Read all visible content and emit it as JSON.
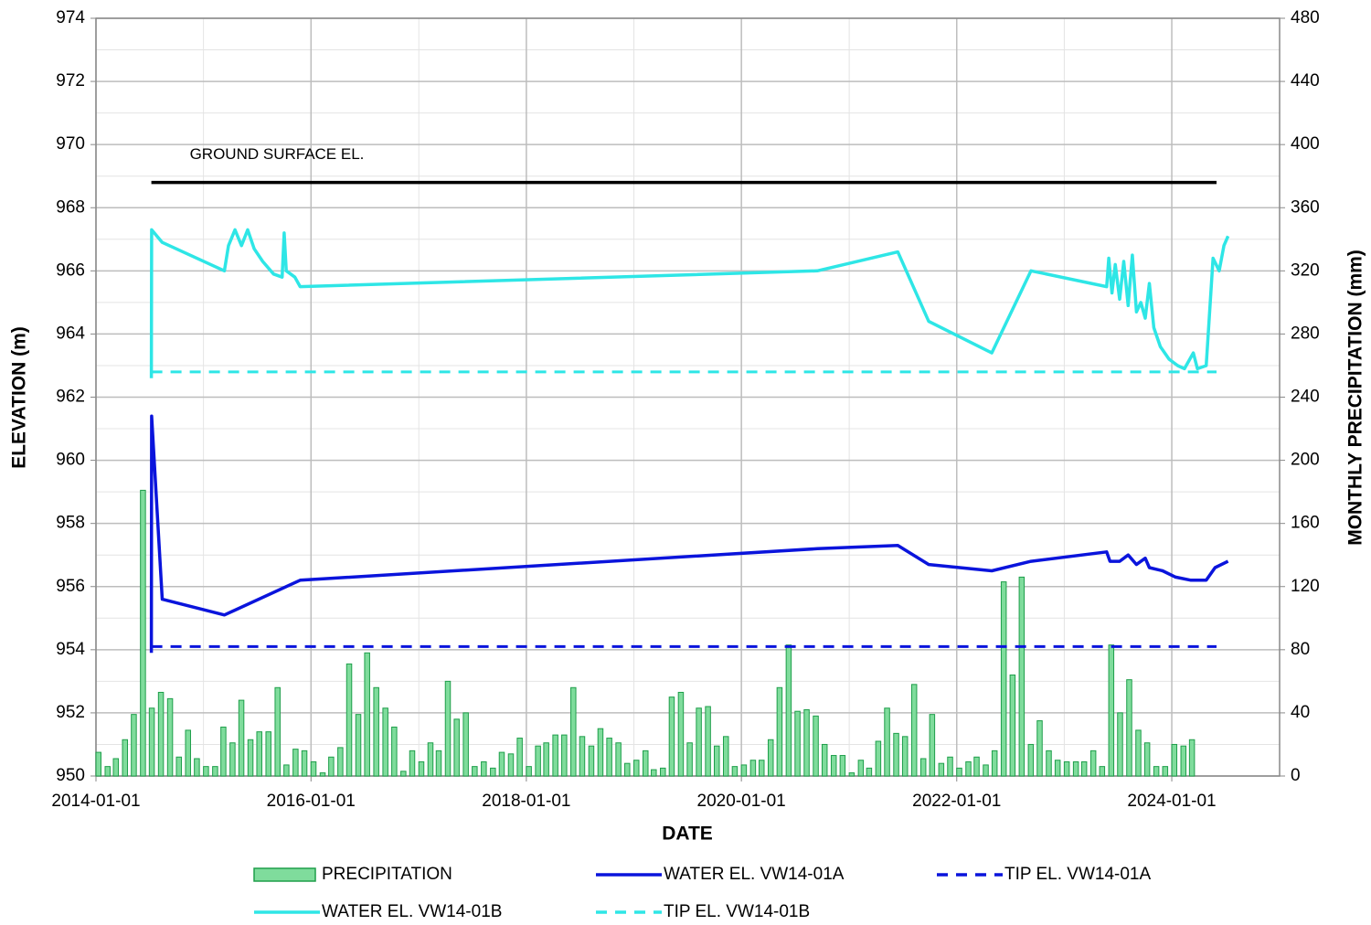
{
  "chart_data": {
    "type": "combo",
    "xlabel": "DATE",
    "ylabel": "ELEVATION (m)",
    "y2label": "MONTHLY PRECIPITATION (mm)",
    "xlim": [
      "2014-01-01",
      "2025-01-01"
    ],
    "xticks": [
      "2014-01-01",
      "2016-01-01",
      "2018-01-01",
      "2020-01-01",
      "2022-01-01",
      "2024-01-01"
    ],
    "xminorticks": [
      "2015-01-01",
      "2017-01-01",
      "2019-01-01",
      "2021-01-01",
      "2023-01-01"
    ],
    "ylim": [
      950,
      974
    ],
    "yticks": [
      950,
      952,
      954,
      956,
      958,
      960,
      962,
      964,
      966,
      968,
      970,
      972,
      974
    ],
    "yminorticks": [
      951,
      953,
      955,
      957,
      959,
      961,
      963,
      965,
      967,
      969,
      971,
      973
    ],
    "y2lim": [
      0,
      480
    ],
    "y2ticks": [
      0,
      40,
      80,
      120,
      160,
      200,
      240,
      280,
      320,
      360,
      400,
      440,
      480
    ],
    "grid": true,
    "legend": "bottom",
    "series": [
      {
        "name": "PRECIPITATION",
        "type": "bar",
        "axis": "y2",
        "color": "#7fdc9c",
        "edgecolor": "#1e9e4a",
        "x": [
          "2014-01",
          "2014-02",
          "2014-03",
          "2014-04",
          "2014-05",
          "2014-06",
          "2014-07",
          "2014-08",
          "2014-09",
          "2014-10",
          "2014-11",
          "2014-12",
          "2015-01",
          "2015-02",
          "2015-03",
          "2015-04",
          "2015-05",
          "2015-06",
          "2015-07",
          "2015-08",
          "2015-09",
          "2015-10",
          "2015-11",
          "2015-12",
          "2016-01",
          "2016-02",
          "2016-03",
          "2016-04",
          "2016-05",
          "2016-06",
          "2016-07",
          "2016-08",
          "2016-09",
          "2016-10",
          "2016-11",
          "2016-12",
          "2017-01",
          "2017-02",
          "2017-03",
          "2017-04",
          "2017-05",
          "2017-06",
          "2017-07",
          "2017-08",
          "2017-09",
          "2017-10",
          "2017-11",
          "2017-12",
          "2018-01",
          "2018-02",
          "2018-03",
          "2018-04",
          "2018-05",
          "2018-06",
          "2018-07",
          "2018-08",
          "2018-09",
          "2018-10",
          "2018-11",
          "2018-12",
          "2019-01",
          "2019-02",
          "2019-03",
          "2019-04",
          "2019-05",
          "2019-06",
          "2019-07",
          "2019-08",
          "2019-09",
          "2019-10",
          "2019-11",
          "2019-12",
          "2020-01",
          "2020-02",
          "2020-03",
          "2020-04",
          "2020-05",
          "2020-06",
          "2020-07",
          "2020-08",
          "2020-09",
          "2020-10",
          "2020-11",
          "2020-12",
          "2021-01",
          "2021-02",
          "2021-03",
          "2021-04",
          "2021-05",
          "2021-06",
          "2021-07",
          "2021-08",
          "2021-09",
          "2021-10",
          "2021-11",
          "2021-12",
          "2022-01",
          "2022-02",
          "2022-03",
          "2022-04",
          "2022-05",
          "2022-06",
          "2022-07",
          "2022-08",
          "2022-09",
          "2022-10",
          "2022-11",
          "2022-12",
          "2023-01",
          "2023-02",
          "2023-03",
          "2023-04",
          "2023-05",
          "2023-06",
          "2023-07",
          "2023-08",
          "2023-09",
          "2023-10",
          "2023-11",
          "2023-12",
          "2024-01",
          "2024-02",
          "2024-03"
        ],
        "values": [
          15,
          6,
          11,
          23,
          39,
          181,
          43,
          53,
          49,
          12,
          29,
          11,
          6,
          6,
          31,
          21,
          48,
          23,
          28,
          28,
          56,
          7,
          17,
          16,
          9,
          2,
          12,
          18,
          71,
          39,
          78,
          56,
          43,
          31,
          3,
          16,
          9,
          21,
          16,
          60,
          36,
          40,
          6,
          9,
          5,
          15,
          14,
          24,
          6,
          19,
          21,
          26,
          26,
          56,
          25,
          19,
          30,
          24,
          21,
          8,
          10,
          16,
          4,
          5,
          50,
          53,
          21,
          43,
          44,
          19,
          25,
          6,
          7,
          10,
          10,
          23,
          56,
          83,
          41,
          42,
          38,
          20,
          13,
          13,
          2,
          10,
          5,
          22,
          43,
          27,
          25,
          58,
          11,
          39,
          8,
          12,
          5,
          9,
          12,
          7,
          16,
          123,
          64,
          126,
          20,
          35,
          16,
          10,
          9,
          9,
          9,
          16,
          6,
          83,
          40,
          61,
          29,
          21,
          6,
          6,
          20,
          19,
          23
        ]
      },
      {
        "name": "WATER EL. VW14-01A",
        "type": "line",
        "color": "#0a14dc",
        "dashed": false,
        "x": [
          "2014-07-08",
          "2014-07-09",
          "2014-08-14",
          "2015-03-13",
          "2015-11-25",
          "2020-09-15",
          "2021-06-15",
          "2021-09-28",
          "2022-04-30",
          "2022-09-10",
          "2023-05-25",
          "2023-06-05",
          "2023-07-08",
          "2023-08-06",
          "2023-09-03",
          "2023-10-03",
          "2023-10-17",
          "2023-12-01",
          "2024-01-14",
          "2024-03-06",
          "2024-04-27",
          "2024-05-27",
          "2024-07-10"
        ],
        "values": [
          953.9,
          961.4,
          955.6,
          955.1,
          956.2,
          957.2,
          957.3,
          956.7,
          956.5,
          956.8,
          957.1,
          956.8,
          956.8,
          957.0,
          956.7,
          956.9,
          956.6,
          956.5,
          956.3,
          956.2,
          956.2,
          956.6,
          956.8
        ]
      },
      {
        "name": "TIP EL. VW14-01A",
        "type": "line",
        "color": "#0a14dc",
        "dashed": true,
        "x": [
          "2014-07-08",
          "2024-06-01"
        ],
        "values": [
          954.1,
          954.1
        ]
      },
      {
        "name": "WATER EL. VW14-01B",
        "type": "line",
        "color": "#2ee6e6",
        "dashed": false,
        "x": [
          "2014-07-08",
          "2014-07-09",
          "2014-08-14",
          "2015-03-13",
          "2015-03-27",
          "2015-04-18",
          "2015-05-10",
          "2015-05-31",
          "2015-06-22",
          "2015-07-21",
          "2015-08-27",
          "2015-09-25",
          "2015-10-02",
          "2015-10-09",
          "2015-11-07",
          "2015-11-25",
          "2020-09-15",
          "2021-06-15",
          "2021-09-28",
          "2022-04-30",
          "2022-09-10",
          "2023-05-25",
          "2023-06-01",
          "2023-06-12",
          "2023-06-23",
          "2023-07-08",
          "2023-07-22",
          "2023-08-06",
          "2023-08-20",
          "2023-09-03",
          "2023-09-18",
          "2023-10-03",
          "2023-10-17",
          "2023-11-01",
          "2023-11-23",
          "2023-12-23",
          "2024-01-21",
          "2024-02-13",
          "2024-03-14",
          "2024-03-28",
          "2024-04-27",
          "2024-05-20",
          "2024-06-10",
          "2024-06-26",
          "2024-07-10"
        ],
        "values": [
          962.6,
          967.3,
          966.9,
          966.0,
          966.8,
          967.3,
          966.8,
          967.3,
          966.7,
          966.3,
          965.9,
          965.8,
          967.2,
          966.0,
          965.8,
          965.5,
          966.0,
          966.6,
          964.4,
          963.4,
          966.0,
          965.5,
          966.4,
          965.3,
          966.2,
          965.1,
          966.3,
          964.9,
          966.5,
          964.7,
          965.0,
          964.5,
          965.6,
          964.2,
          963.6,
          963.2,
          963.0,
          962.9,
          963.4,
          962.9,
          963.0,
          966.4,
          966.0,
          966.8,
          967.1
        ]
      },
      {
        "name": "TIP EL. VW14-01B",
        "type": "line",
        "color": "#2ee6e6",
        "dashed": true,
        "x": [
          "2014-07-08",
          "2024-06-01"
        ],
        "values": [
          962.8,
          962.8
        ]
      },
      {
        "name": "GROUND SURFACE EL.",
        "type": "line",
        "color": "#000000",
        "dashed": false,
        "label_on_line": true,
        "x": [
          "2014-07-08",
          "2024-06-01"
        ],
        "values": [
          968.8,
          968.8
        ]
      }
    ]
  }
}
